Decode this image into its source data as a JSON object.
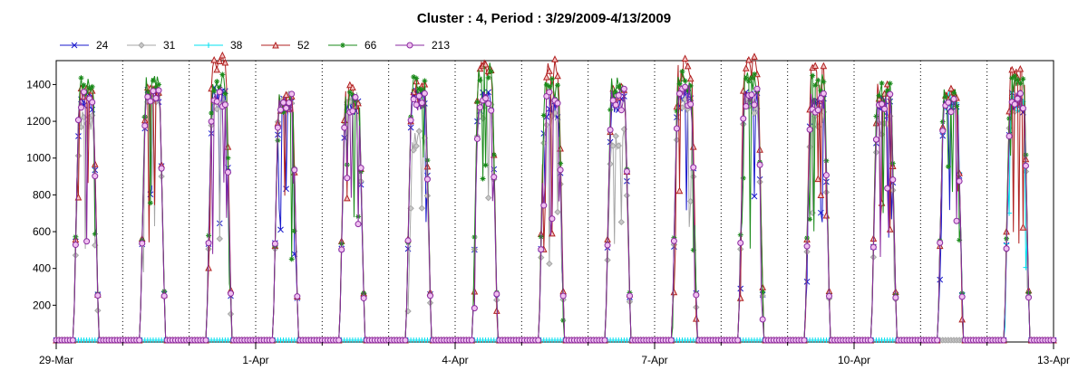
{
  "chart_data": {
    "type": "line",
    "title": "Cluster : 4, Period : 3/29/2009-4/13/2009",
    "xlabel": "",
    "ylabel": "",
    "x_range_days": [
      0,
      15
    ],
    "ylim": [
      0,
      1530
    ],
    "x_ticks": [
      {
        "label": "29-Mar",
        "day": 0
      },
      {
        "label": "1-Apr",
        "day": 3
      },
      {
        "label": "4-Apr",
        "day": 6
      },
      {
        "label": "7-Apr",
        "day": 9
      },
      {
        "label": "10-Apr",
        "day": 12
      },
      {
        "label": "13-Apr",
        "day": 15
      }
    ],
    "y_ticks": [
      200,
      400,
      600,
      800,
      1000,
      1200,
      1400
    ],
    "grid": {
      "vertical_dotted_daily": true,
      "horizontal": false
    },
    "legend_position": "top-left",
    "series": [
      {
        "name": "24",
        "color": "#1a1acc",
        "marker": "x",
        "daily_peak": [
          1320,
          1340,
          1330,
          1290,
          1280,
          1310,
          1300,
          1280,
          1290,
          1330,
          1320,
          1300,
          1280,
          1280,
          1300
        ]
      },
      {
        "name": "31",
        "color": "#a6a6a6",
        "marker": "diamond",
        "daily_peak": [
          1200,
          1330,
          1300,
          1300,
          1300,
          1100,
          1250,
          1200,
          1100,
          1300,
          1280,
          1220,
          1180,
          0,
          1300
        ]
      },
      {
        "name": "38",
        "color": "#00e0f0",
        "marker": "plus",
        "daily_peak": [
          0,
          0,
          0,
          0,
          0,
          0,
          0,
          0,
          0,
          0,
          0,
          0,
          0,
          1320,
          1300
        ]
      },
      {
        "name": "52",
        "color": "#b02020",
        "marker": "triangle",
        "daily_peak": [
          1360,
          1380,
          1510,
          1300,
          1340,
          1360,
          1480,
          1490,
          1350,
          1490,
          1500,
          1450,
          1380,
          1360,
          1450
        ]
      },
      {
        "name": "66",
        "color": "#1a8a1a",
        "marker": "asterisk",
        "daily_peak": [
          1380,
          1390,
          1400,
          1300,
          1330,
          1390,
          1460,
          1380,
          1380,
          1420,
          1420,
          1400,
          1360,
          1340,
          1400
        ]
      },
      {
        "name": "213",
        "color": "#8a2aa0",
        "marker": "circle",
        "daily_peak": [
          1310,
          1330,
          1330,
          1290,
          1300,
          1320,
          1310,
          1300,
          1320,
          1340,
          1320,
          1300,
          1290,
          1300,
          1320
        ]
      }
    ]
  }
}
